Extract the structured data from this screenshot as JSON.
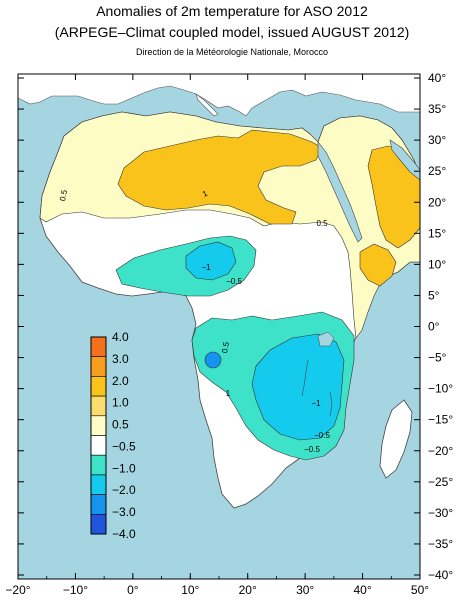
{
  "header": {
    "title": "Anomalies of 2m temperature for ASO 2012",
    "subtitle": "(ARPEGE–Climat coupled model, issued AUGUST 2012)",
    "credit": "Direction de la Météorologie Nationale, Morocco"
  },
  "map": {
    "x_ticks": [
      "−20°",
      "−10°",
      "0°",
      "10°",
      "20°",
      "30°",
      "40°",
      "50°"
    ],
    "y_ticks": [
      "40°",
      "35°",
      "30°",
      "25°",
      "20°",
      "15°",
      "10°",
      "5°",
      "0°",
      "−5°",
      "−10°",
      "−15°",
      "−20°",
      "−25°",
      "−30°",
      "−35°",
      "−40°"
    ],
    "contour_labels": [
      "0.5",
      "1",
      "0.5",
      "−1",
      "−0.5",
      "0.5",
      "1",
      "−0.5",
      "−1",
      "−0.5"
    ]
  },
  "legend": {
    "labels": [
      "4.0",
      "3.0",
      "2.0",
      "1.0",
      "0.5",
      "−0.5",
      "−1.0",
      "−2.0",
      "−3.0",
      "−4.0"
    ],
    "colors": [
      "#f4701c",
      "#f79e1e",
      "#f9c31c",
      "#f8dd6e",
      "#fdfcc4",
      "#ffffff",
      "#3ee2c8",
      "#14cbee",
      "#1494ee",
      "#2055dd"
    ]
  },
  "colors": {
    "sea": "#a6d5e2",
    "land": "#ffffff",
    "anomaly_pos_1": "#fdfcc4",
    "anomaly_pos_2": "#f9c31c",
    "anomaly_neg_1": "#3ee2c8",
    "anomaly_neg_2": "#14cbee",
    "anomaly_neg_3": "#1494ee"
  }
}
